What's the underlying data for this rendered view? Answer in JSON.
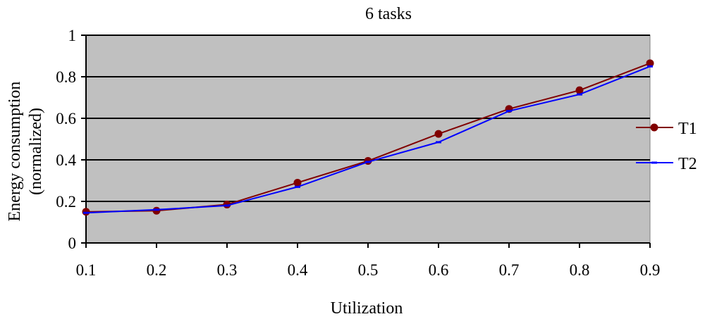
{
  "chart_data": {
    "type": "line",
    "title": "6 tasks",
    "xlabel": "Utilization",
    "ylabel": [
      "Energy consumption",
      "(normalized)"
    ],
    "x": [
      0.1,
      0.2,
      0.3,
      0.4,
      0.5,
      0.6,
      0.7,
      0.8,
      0.9
    ],
    "x_tick_labels": [
      "0.1",
      "0.2",
      "0.3",
      "0.4",
      "0.5",
      "0.6",
      "0.7",
      "0.8",
      "0.9"
    ],
    "y_ticks": [
      0,
      0.2,
      0.4,
      0.6,
      0.8,
      1
    ],
    "y_tick_labels": [
      "0",
      "0.2",
      "0.4",
      "0.6",
      "0.8",
      "1"
    ],
    "ylim": [
      0,
      1
    ],
    "grid": "horizontal",
    "legend_position": "right",
    "plot_background": "#c0c0c0",
    "series": [
      {
        "name": "T1",
        "color": "#800000",
        "marker": "circle",
        "values": [
          0.15,
          0.155,
          0.185,
          0.29,
          0.395,
          0.525,
          0.645,
          0.735,
          0.865
        ]
      },
      {
        "name": "T2",
        "color": "#0000ff",
        "marker": "dash",
        "values": [
          0.145,
          0.16,
          0.18,
          0.27,
          0.39,
          0.485,
          0.635,
          0.715,
          0.85
        ]
      }
    ]
  }
}
